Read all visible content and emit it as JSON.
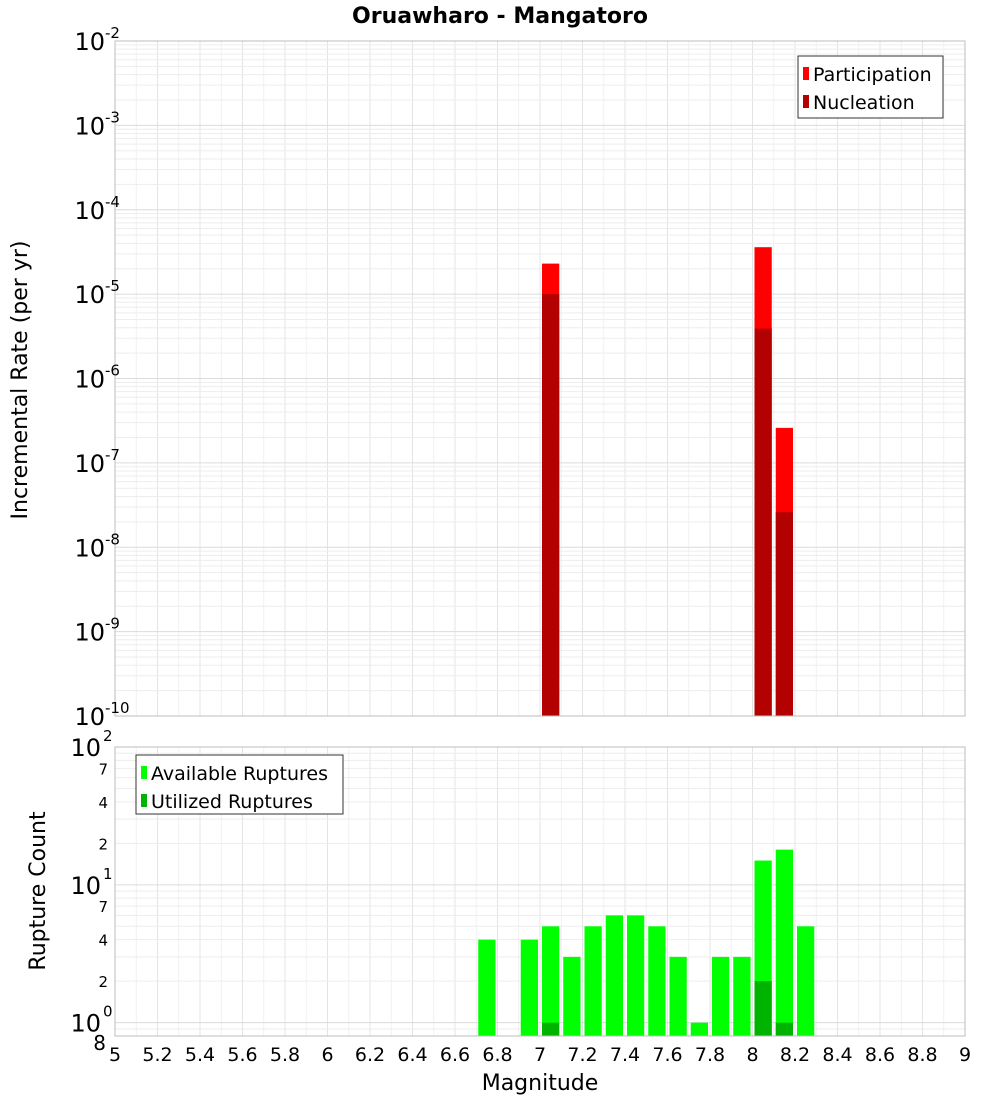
{
  "chart_data": [
    {
      "type": "bar",
      "title": "Oruawharo - Mangatoro",
      "xlabel": "Magnitude",
      "ylabel": "Incremental Rate (per yr)",
      "yscale": "log",
      "xlim": [
        5,
        9
      ],
      "ylim": [
        1e-10,
        0.01
      ],
      "bin_width": 0.1,
      "y_tick_labels": [
        {
          "base": "10",
          "exp": "-10"
        },
        {
          "base": "10",
          "exp": "-9"
        },
        {
          "base": "10",
          "exp": "-8"
        },
        {
          "base": "10",
          "exp": "-7"
        },
        {
          "base": "10",
          "exp": "-6"
        },
        {
          "base": "10",
          "exp": "-5"
        },
        {
          "base": "10",
          "exp": "-4"
        },
        {
          "base": "10",
          "exp": "-3"
        },
        {
          "base": "10",
          "exp": "-2"
        }
      ],
      "legend_position": "top-right",
      "series": [
        {
          "name": "Participation",
          "color": "#ff0000",
          "x": [
            7.05,
            8.05,
            8.15
          ],
          "values": [
            2.3e-05,
            3.6e-05,
            2.6e-07
          ]
        },
        {
          "name": "Nucleation",
          "color": "#b30000",
          "x": [
            7.05,
            8.05,
            8.15
          ],
          "values": [
            1e-05,
            3.9e-06,
            2.6e-08
          ]
        }
      ]
    },
    {
      "type": "bar",
      "xlabel": "Magnitude",
      "ylabel": "Rupture Count",
      "yscale": "log",
      "xlim": [
        5,
        9
      ],
      "ylim": [
        0.8,
        100
      ],
      "bin_width": 0.1,
      "x_tick_labels": [
        "5",
        "5.2",
        "5.4",
        "5.6",
        "5.8",
        "6",
        "6.2",
        "6.4",
        "6.6",
        "6.8",
        "7",
        "7.2",
        "7.4",
        "7.6",
        "7.8",
        "8",
        "8.2",
        "8.4",
        "8.6",
        "8.8",
        "9"
      ],
      "y_tick_labels": [
        {
          "value": 1,
          "base": "10",
          "exp": "0"
        },
        {
          "value": 10,
          "base": "10",
          "exp": "1"
        },
        {
          "value": 100,
          "base": "10",
          "exp": "2"
        }
      ],
      "y_minor_labels": [
        {
          "value": 0.8,
          "label": "8"
        },
        {
          "value": 2,
          "label": "2"
        },
        {
          "value": 4,
          "label": "4"
        },
        {
          "value": 7,
          "label": "7"
        },
        {
          "value": 20,
          "label": "2"
        },
        {
          "value": 40,
          "label": "4"
        },
        {
          "value": 70,
          "label": "7"
        }
      ],
      "legend_position": "top-left",
      "series": [
        {
          "name": "Available Ruptures",
          "color": "#00ff00",
          "x": [
            6.75,
            6.95,
            7.05,
            7.15,
            7.25,
            7.35,
            7.45,
            7.55,
            7.65,
            7.75,
            7.85,
            7.95,
            8.05,
            8.15,
            8.25
          ],
          "values": [
            4,
            4,
            5,
            3,
            5,
            6,
            6,
            5,
            3,
            1,
            3,
            3,
            15,
            18,
            5
          ]
        },
        {
          "name": "Utilized Ruptures",
          "color": "#00b300",
          "x": [
            7.05,
            8.05,
            8.15
          ],
          "values": [
            1,
            2,
            1
          ]
        }
      ]
    }
  ]
}
